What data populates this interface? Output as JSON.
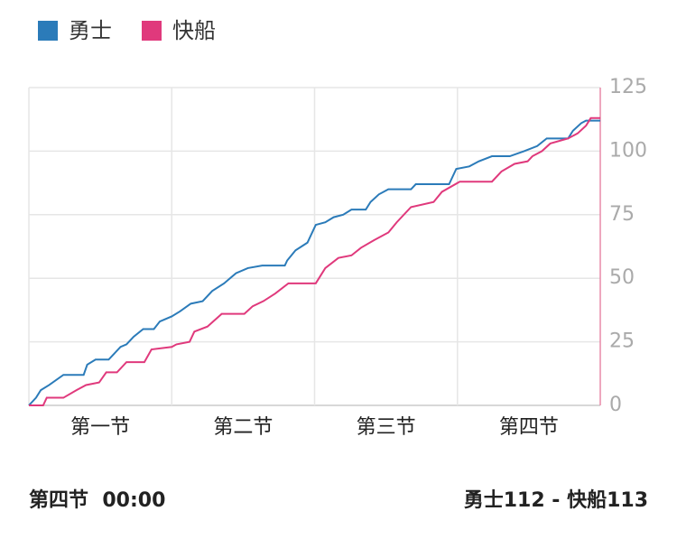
{
  "chart_data": {
    "type": "line",
    "xlim": [
      0,
      48
    ],
    "xticks": [
      {
        "value": 6,
        "label": "第一节"
      },
      {
        "value": 18,
        "label": "第二节"
      },
      {
        "value": 30,
        "label": "第三节"
      },
      {
        "value": 42,
        "label": "第四节"
      }
    ],
    "ylim": [
      0,
      125
    ],
    "yticks": [
      0,
      25,
      50,
      75,
      100,
      125
    ],
    "grid": true,
    "legend": "top-left",
    "series": [
      {
        "name": "勇士",
        "color": "#2b7bb9",
        "x": [
          0,
          0.6,
          1.0,
          1.7,
          2.9,
          4.6,
          4.9,
          5.6,
          6.7,
          7.1,
          7.7,
          8.2,
          8.8,
          9.6,
          10.5,
          11.0,
          12.0,
          12.7,
          13.6,
          14.6,
          15.4,
          16.4,
          17.4,
          18.4,
          19.6,
          21.5,
          21.7,
          22.4,
          23.4,
          23.7,
          24.1,
          24.9,
          25.6,
          26.4,
          27.1,
          28.3,
          28.7,
          29.4,
          30.2,
          32.1,
          32.5,
          35.3,
          35.9,
          37.0,
          37.8,
          38.9,
          40.4,
          41.6,
          42.7,
          43.5,
          45.3,
          45.7,
          46.4,
          46.8,
          48
        ],
        "values": [
          0,
          3,
          6,
          8,
          12,
          12,
          16,
          18,
          18,
          20,
          23,
          24,
          27,
          30,
          30,
          33,
          35,
          37,
          40,
          41,
          45,
          48,
          52,
          54,
          55,
          55,
          57,
          61,
          64,
          67,
          71,
          72,
          74,
          75,
          77,
          77,
          80,
          83,
          85,
          85,
          87,
          87,
          93,
          94,
          96,
          98,
          98,
          100,
          102,
          105,
          105,
          108,
          111,
          112,
          112
        ]
      },
      {
        "name": "快船",
        "color": "#e0397c",
        "x": [
          0,
          1.2,
          1.5,
          2.9,
          4.0,
          4.8,
          5.9,
          6.5,
          7.4,
          8.2,
          9.7,
          10.3,
          12.0,
          12.4,
          13.5,
          13.9,
          15.0,
          16.2,
          18.1,
          18.8,
          19.7,
          20.7,
          21.8,
          24.1,
          24.9,
          26.0,
          27.1,
          27.9,
          29.0,
          30.2,
          30.9,
          32.1,
          34.0,
          34.7,
          36.2,
          38.9,
          39.7,
          40.8,
          41.9,
          42.3,
          43.1,
          43.8,
          45.3,
          46.1,
          46.8,
          47.2,
          48
        ],
        "values": [
          0,
          0,
          3,
          3,
          6,
          8,
          9,
          13,
          13,
          17,
          17,
          22,
          23,
          24,
          25,
          29,
          31,
          36,
          36,
          39,
          41,
          44,
          48,
          48,
          54,
          58,
          59,
          62,
          65,
          68,
          72,
          78,
          80,
          84,
          88,
          88,
          92,
          95,
          96,
          98,
          100,
          103,
          105,
          107,
          110,
          113,
          113
        ]
      }
    ]
  },
  "status": {
    "period": "第四节",
    "clock": "00:00",
    "score": "勇士112 - 快船113"
  }
}
